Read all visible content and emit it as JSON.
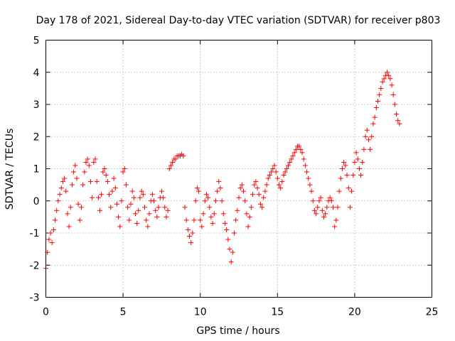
{
  "chart_data": {
    "type": "scatter",
    "title": "Day 178 of 2021, Sidereal Day-to-day VTEC variation (SDTVAR) for receiver p803",
    "xlabel": "GPS time / hours",
    "ylabel": "SDTVAR / TECUs",
    "xlim": [
      0,
      25
    ],
    "ylim": [
      -3,
      5
    ],
    "xticks": [
      0,
      5,
      10,
      15,
      20,
      25
    ],
    "yticks": [
      -3,
      -2,
      -1,
      0,
      1,
      2,
      3,
      4,
      5
    ],
    "grid": true,
    "marker": "+",
    "color": "#ff0000",
    "series": [
      {
        "name": "SDTVAR",
        "x": [
          0.0,
          0.1,
          0.2,
          0.3,
          0.4,
          0.5,
          0.6,
          0.7,
          0.8,
          0.9,
          1.0,
          1.1,
          1.2,
          1.3,
          1.4,
          1.5,
          1.6,
          1.7,
          1.8,
          1.9,
          2.0,
          2.1,
          2.2,
          2.3,
          2.4,
          2.5,
          2.6,
          2.7,
          2.8,
          2.9,
          3.0,
          3.1,
          3.2,
          3.3,
          3.4,
          3.5,
          3.6,
          3.7,
          3.8,
          3.9,
          4.0,
          4.1,
          4.2,
          4.3,
          4.4,
          4.5,
          4.6,
          4.7,
          4.8,
          4.9,
          5.0,
          5.1,
          5.2,
          5.3,
          5.4,
          5.5,
          5.6,
          5.7,
          5.8,
          5.9,
          6.0,
          6.1,
          6.2,
          6.3,
          6.4,
          6.5,
          6.6,
          6.7,
          6.8,
          6.9,
          7.0,
          7.1,
          7.2,
          7.3,
          7.4,
          7.5,
          7.6,
          7.7,
          7.8,
          7.9,
          8.0,
          8.1,
          8.2,
          8.3,
          8.4,
          8.5,
          8.6,
          8.7,
          8.8,
          8.9,
          9.0,
          9.1,
          9.2,
          9.3,
          9.4,
          9.5,
          9.6,
          9.7,
          9.8,
          9.9,
          10.0,
          10.1,
          10.2,
          10.3,
          10.4,
          10.5,
          10.6,
          10.7,
          10.8,
          10.9,
          11.0,
          11.1,
          11.2,
          11.3,
          11.4,
          11.5,
          11.6,
          11.7,
          11.8,
          11.9,
          12.0,
          12.1,
          12.2,
          12.3,
          12.4,
          12.5,
          12.6,
          12.7,
          12.8,
          12.9,
          13.0,
          13.1,
          13.2,
          13.3,
          13.4,
          13.5,
          13.6,
          13.7,
          13.8,
          13.9,
          14.0,
          14.1,
          14.2,
          14.3,
          14.4,
          14.5,
          14.6,
          14.7,
          14.8,
          14.9,
          15.0,
          15.1,
          15.2,
          15.3,
          15.4,
          15.5,
          15.6,
          15.7,
          15.8,
          15.9,
          16.0,
          16.1,
          16.2,
          16.3,
          16.4,
          16.5,
          16.6,
          16.7,
          16.8,
          16.9,
          17.0,
          17.1,
          17.2,
          17.3,
          17.4,
          17.5,
          17.6,
          17.7,
          17.8,
          17.9,
          18.0,
          18.1,
          18.2,
          18.3,
          18.4,
          18.5,
          18.6,
          18.7,
          18.8,
          18.9,
          19.0,
          19.1,
          19.2,
          19.3,
          19.4,
          19.5,
          19.6,
          19.7,
          19.8,
          19.9,
          20.0,
          20.1,
          20.2,
          20.3,
          20.4,
          20.5,
          20.6,
          20.7,
          20.8,
          20.9,
          21.0,
          21.1,
          21.2,
          21.3,
          21.4,
          21.5,
          21.6,
          21.7,
          21.8,
          21.9,
          22.0,
          22.1,
          22.2,
          22.3,
          22.4,
          22.5,
          22.6,
          22.7,
          22.8,
          22.9
        ],
        "y": [
          -2.1,
          -1.6,
          -1.2,
          -1.0,
          -1.3,
          -0.9,
          -0.6,
          -0.3,
          0.0,
          0.2,
          0.4,
          0.6,
          0.7,
          0.3,
          -0.4,
          -0.8,
          -0.2,
          0.5,
          0.9,
          1.1,
          0.7,
          -0.1,
          -0.6,
          -0.2,
          0.5,
          0.9,
          1.2,
          1.3,
          1.1,
          0.6,
          0.1,
          1.2,
          1.3,
          0.6,
          0.1,
          -0.3,
          0.2,
          0.9,
          1.0,
          0.8,
          0.6,
          0.2,
          -0.2,
          0.3,
          0.7,
          0.4,
          -0.1,
          -0.5,
          -0.8,
          0.0,
          0.9,
          1.0,
          0.5,
          -0.2,
          -0.6,
          -0.1,
          0.3,
          0.1,
          -0.4,
          -0.7,
          -0.3,
          0.1,
          0.3,
          0.2,
          -0.2,
          -0.6,
          -0.8,
          -0.4,
          0.0,
          0.2,
          0.0,
          -0.3,
          -0.5,
          -0.2,
          0.1,
          0.3,
          0.1,
          -0.2,
          -0.5,
          -0.3,
          1.0,
          1.1,
          1.2,
          1.3,
          1.3,
          1.4,
          1.4,
          1.4,
          1.45,
          1.4,
          -0.2,
          -0.6,
          -0.9,
          -1.1,
          -1.3,
          -1.0,
          -0.6,
          0.0,
          0.4,
          0.3,
          -0.6,
          -0.8,
          -0.4,
          0.0,
          0.2,
          0.1,
          -0.2,
          -0.5,
          -0.7,
          -0.4,
          0.0,
          0.3,
          0.6,
          0.4,
          0.0,
          -0.4,
          -0.7,
          -0.9,
          -1.2,
          -1.5,
          -1.9,
          -1.6,
          -1.0,
          -0.6,
          -0.3,
          0.1,
          0.4,
          0.5,
          0.3,
          0.0,
          -0.4,
          -0.8,
          -0.5,
          -0.2,
          0.2,
          0.5,
          0.6,
          0.4,
          0.2,
          -0.1,
          -0.2,
          0.1,
          0.3,
          0.5,
          0.7,
          0.8,
          0.9,
          1.0,
          1.1,
          0.9,
          0.7,
          0.5,
          0.4,
          0.6,
          0.8,
          0.9,
          1.0,
          1.1,
          1.2,
          1.3,
          1.4,
          1.5,
          1.6,
          1.7,
          1.7,
          1.6,
          1.5,
          1.3,
          1.1,
          0.9,
          0.7,
          0.5,
          0.3,
          0.0,
          -0.3,
          -0.4,
          -0.2,
          0.0,
          0.1,
          -0.3,
          -0.5,
          -0.4,
          -0.2,
          0.0,
          0.1,
          0.0,
          -0.2,
          -0.8,
          -0.6,
          -0.2,
          0.3,
          0.7,
          1.0,
          1.2,
          1.1,
          0.8,
          0.4,
          -0.2,
          0.3,
          0.8,
          1.2,
          1.5,
          1.3,
          1.0,
          0.8,
          1.2,
          1.6,
          2.0,
          2.2,
          1.9,
          1.6,
          2.0,
          2.4,
          2.6,
          2.9,
          3.1,
          3.3,
          3.5,
          3.7,
          3.8,
          3.9,
          4.0,
          3.9,
          3.8,
          3.6,
          3.3,
          3.0,
          2.7,
          2.5,
          2.4
        ]
      }
    ]
  }
}
